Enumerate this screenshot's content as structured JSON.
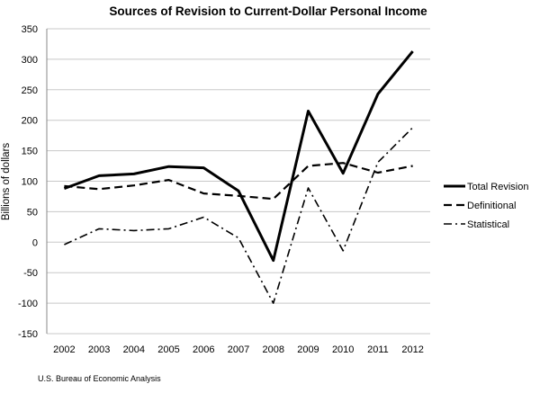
{
  "chart_data": {
    "type": "line",
    "title": "Sources of Revision to Current-Dollar Personal Income",
    "xlabel": "",
    "ylabel": "Billions of dollars",
    "categories": [
      "2002",
      "2003",
      "2004",
      "2005",
      "2006",
      "2007",
      "2008",
      "2009",
      "2010",
      "2011",
      "2012"
    ],
    "ylim": [
      -150,
      350
    ],
    "yticks": [
      -150,
      -100,
      -50,
      0,
      50,
      100,
      150,
      200,
      250,
      300,
      350
    ],
    "grid": true,
    "legend_position": "right",
    "series": [
      {
        "name": "Total Revision",
        "style": "solid",
        "values": [
          88,
          109,
          112,
          124,
          122,
          84,
          -30,
          215,
          113,
          243,
          313
        ]
      },
      {
        "name": "Definitional",
        "style": "dashed",
        "values": [
          92,
          87,
          93,
          102,
          80,
          76,
          71,
          125,
          130,
          114,
          125
        ]
      },
      {
        "name": "Statistical",
        "style": "dashdot",
        "values": [
          -4,
          22,
          19,
          22,
          41,
          7,
          -100,
          89,
          -14,
          131,
          188
        ]
      }
    ]
  },
  "source": "U.S. Bureau of Economic Analysis",
  "colors": {
    "line": "#000000",
    "grid": "#c8c8c8",
    "axis": "#888888"
  }
}
